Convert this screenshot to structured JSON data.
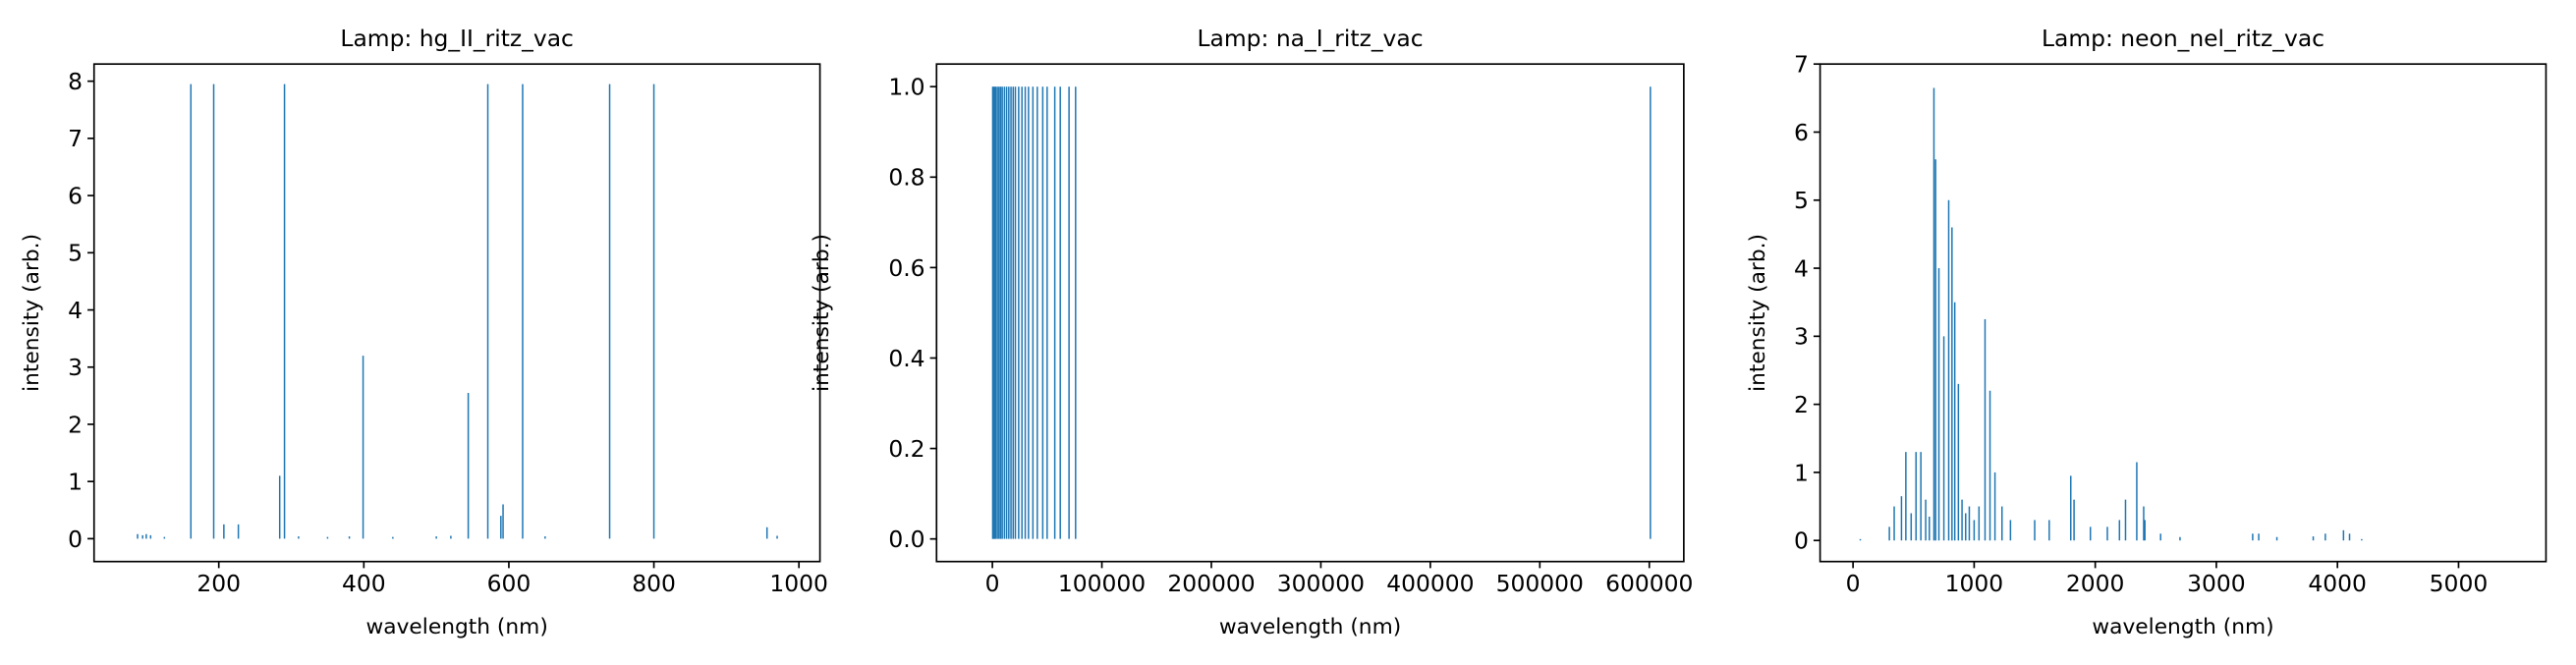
{
  "chart_data": [
    {
      "type": "stem",
      "title": "Lamp: hg_II_ritz_vac",
      "x_label": "wavelength (nm)",
      "y_label": "intensity (arb.)",
      "color": "#1f77b4",
      "xlim": [
        28,
        1029
      ],
      "ylim": [
        -0.4,
        8.3
      ],
      "xticks": [
        200,
        400,
        600,
        800,
        1000
      ],
      "yticks": [
        0,
        1,
        2,
        3,
        4,
        5,
        6,
        7,
        8
      ],
      "x": [
        88,
        95,
        100,
        106,
        125,
        161.5,
        193,
        207,
        227,
        284,
        290.6,
        310,
        350,
        380,
        399,
        440,
        500,
        520,
        544,
        571,
        589,
        592,
        619,
        650,
        739,
        800,
        956,
        970
      ],
      "values": [
        0.08,
        0.06,
        0.08,
        0.06,
        0.03,
        7.95,
        7.95,
        0.25,
        0.25,
        1.1,
        7.95,
        0.04,
        0.03,
        0.04,
        3.2,
        0.03,
        0.04,
        0.05,
        2.55,
        7.95,
        0.4,
        0.6,
        7.95,
        0.04,
        7.95,
        7.95,
        0.2,
        0.05
      ]
    },
    {
      "type": "stem",
      "title": "Lamp: na_I_ritz_vac",
      "x_label": "wavelength (nm)",
      "y_label": "intensity (arb.)",
      "color": "#1f77b4",
      "xlim": [
        -51000,
        631500
      ],
      "ylim": [
        -0.05,
        1.05
      ],
      "xticks": [
        0,
        100000,
        200000,
        300000,
        400000,
        500000,
        600000
      ],
      "yticks": [
        {
          "value": 0,
          "label": "0.0"
        },
        0.2,
        0.4,
        0.6,
        0.8,
        {
          "value": 1,
          "label": "1.0"
        }
      ],
      "x": [
        300,
        1000,
        2000,
        3000,
        4500,
        6000,
        7500,
        9000,
        11000,
        13000,
        15000,
        17000,
        19000,
        21000,
        24000,
        27000,
        30000,
        33000,
        37000,
        41000,
        46000,
        50000,
        57000,
        62000,
        70000,
        76000,
        601000
      ],
      "values": [
        1,
        1,
        1,
        1,
        1,
        1,
        1,
        1,
        1,
        1,
        1,
        1,
        1,
        1,
        1,
        1,
        1,
        1,
        1,
        1,
        1,
        1,
        1,
        1,
        1,
        1,
        1
      ]
    },
    {
      "type": "stem",
      "title": "Lamp: neon_nel_ritz_vac",
      "x_label": "wavelength (nm)",
      "y_label": "intensity (arb.)",
      "color": "#1f77b4",
      "xlim": [
        -272,
        5722
      ],
      "ylim": [
        -0.31,
        7.0
      ],
      "xticks": [
        0,
        1000,
        2000,
        3000,
        4000,
        5000
      ],
      "yticks": [
        0,
        1,
        2,
        3,
        4,
        5,
        6,
        7
      ],
      "x": [
        60,
        300,
        340,
        400,
        436,
        480,
        520,
        560,
        600,
        630,
        668,
        682,
        709,
        750,
        790,
        817,
        840,
        870,
        900,
        930,
        960,
        1000,
        1040,
        1090,
        1131,
        1172,
        1230,
        1300,
        1500,
        1620,
        1798,
        1825,
        1960,
        2100,
        2200,
        2250,
        2343,
        2400,
        2410,
        2540,
        2700,
        3300,
        3350,
        3500,
        3800,
        3900,
        4050,
        4100,
        4200
      ],
      "values": [
        0.02,
        0.2,
        0.5,
        0.65,
        1.3,
        0.4,
        1.3,
        1.3,
        0.6,
        0.35,
        6.65,
        5.6,
        4.0,
        3.0,
        5.0,
        4.6,
        3.5,
        2.3,
        0.6,
        0.4,
        0.5,
        0.3,
        0.5,
        3.25,
        2.2,
        1.0,
        0.5,
        0.3,
        0.3,
        0.3,
        0.95,
        0.6,
        0.2,
        0.2,
        0.3,
        0.6,
        1.15,
        0.5,
        0.3,
        0.1,
        0.05,
        0.1,
        0.1,
        0.05,
        0.06,
        0.1,
        0.15,
        0.1,
        0.02
      ]
    }
  ]
}
